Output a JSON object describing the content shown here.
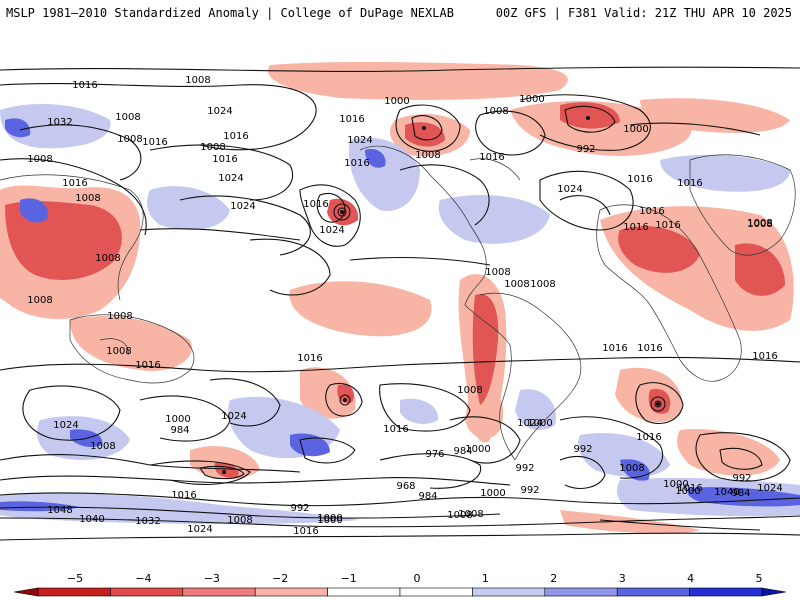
{
  "header": {
    "left": "MSLP 1981–2010 Standardized Anomaly | College of DuPage NEXLAB",
    "right": "00Z GFS | F381 Valid: 21Z THU APR 10 2025"
  },
  "colorbar": {
    "ticks": [
      "−5",
      "−4",
      "−3",
      "−2",
      "−1",
      "0",
      "1",
      "2",
      "3",
      "4",
      "5"
    ],
    "colors": [
      "#8c0a0a",
      "#c81e1e",
      "#e04a4a",
      "#ee7b7b",
      "#f7b3a8",
      "#ffffff",
      "#ffffff",
      "#c8cbf2",
      "#8f96ea",
      "#5a64e0",
      "#2330d6",
      "#0a14a8"
    ]
  },
  "map": {
    "colors": {
      "pos_strong": "#e25555",
      "pos_weak": "#f8b4a4",
      "neg_weak": "#c5c9f0",
      "neg_strong": "#5a63e0",
      "land": "#333333",
      "isobar": "#111111"
    },
    "isobar_labels": [
      "1016",
      "1008",
      "1032",
      "1024",
      "1016",
      "1008",
      "1024",
      "1016",
      "1024",
      "1008",
      "1008",
      "1016",
      "1008",
      "1008",
      "1024",
      "1016",
      "1016",
      "1000",
      "1008",
      "1016",
      "1000",
      "992",
      "1000",
      "1008",
      "1016",
      "1024",
      "1024",
      "1016",
      "1016",
      "1016",
      "1008",
      "1016",
      "1016",
      "1008",
      "1008",
      "1016",
      "1008",
      "1008",
      "1008",
      "1008",
      "1008",
      "1016",
      "1016",
      "1008",
      "1016",
      "1024",
      "1000",
      "984",
      "1016",
      "1024",
      "1016",
      "1008",
      "1016",
      "1000",
      "1024",
      "1008",
      "1000",
      "992",
      "992",
      "976",
      "984",
      "1016",
      "992",
      "992",
      "1008",
      "1000",
      "984",
      "1000",
      "1016",
      "1040",
      "1024",
      "1048",
      "1040",
      "1032",
      "1024",
      "1008",
      "992",
      "1000",
      "1016",
      "1008",
      "968",
      "984",
      "1000",
      "1008",
      "1000",
      "1016"
    ]
  }
}
